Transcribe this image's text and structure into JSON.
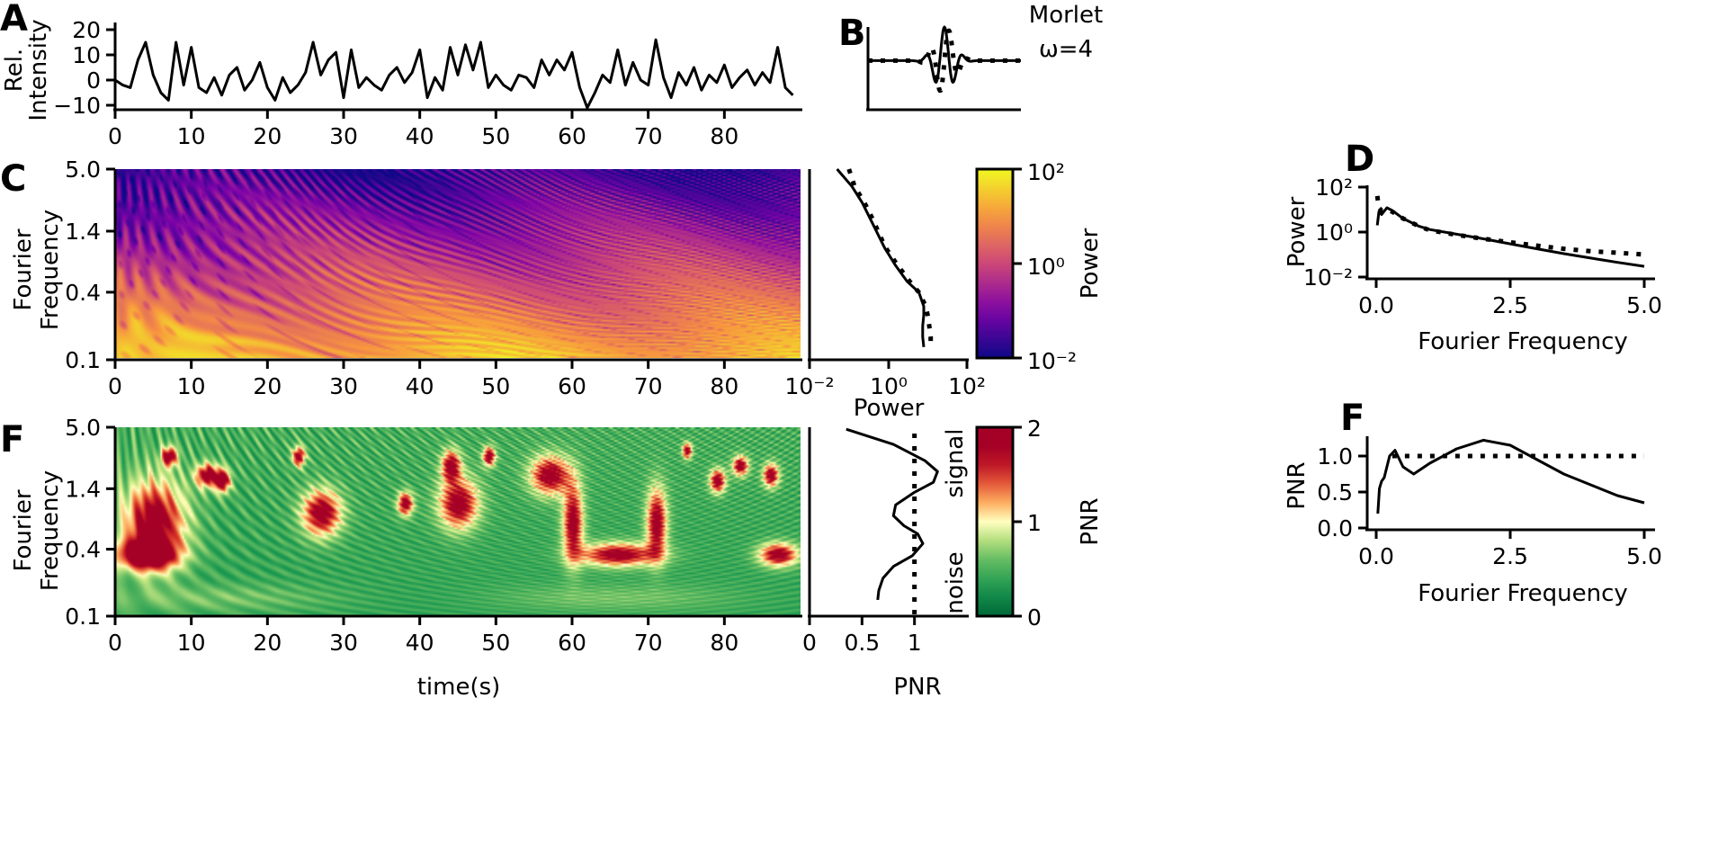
{
  "panel_labels": {
    "A": "A",
    "B": "B",
    "C": "C",
    "D": "D",
    "F1": "F",
    "F2": "F"
  },
  "chart_data": [
    {
      "id": "A",
      "type": "line",
      "ylabel": "Rel.\nIntensity",
      "xlabel": "",
      "xlim": [
        0,
        90
      ],
      "ylim": [
        -12,
        20
      ],
      "xticks": [
        "0",
        "10",
        "20",
        "30",
        "40",
        "50",
        "60",
        "70",
        "80"
      ],
      "yticks": [
        "20",
        "10",
        "0",
        "−10"
      ],
      "x_step": 1,
      "values": [
        0,
        -2,
        -3,
        8,
        15,
        2,
        -5,
        -8,
        15,
        -2,
        13,
        -3,
        -5,
        1,
        -6,
        2,
        5,
        -4,
        0,
        7,
        -3,
        -8,
        1,
        -5,
        -2,
        3,
        15,
        2,
        8,
        11,
        -7,
        12,
        -3,
        1,
        -2,
        -4,
        2,
        5,
        -1,
        3,
        12,
        -7,
        1,
        -4,
        13,
        2,
        14,
        4,
        15,
        -3,
        2,
        -2,
        -4,
        2,
        1,
        -3,
        8,
        2,
        8,
        4,
        11,
        -3,
        -11,
        -5,
        2,
        -1,
        12,
        -2,
        7,
        0,
        -2,
        16,
        1,
        -7,
        3,
        -2,
        5,
        -4,
        2,
        -1,
        6,
        -3,
        1,
        4,
        -2,
        3,
        -1,
        13,
        -3,
        -6
      ]
    },
    {
      "id": "B",
      "type": "line",
      "title": "Morlet\nω=4",
      "omega": 4,
      "series": [
        {
          "style": "solid",
          "part": "real"
        },
        {
          "style": "dotted",
          "part": "imaginary"
        }
      ]
    },
    {
      "id": "C-heatmap",
      "type": "heatmap",
      "ylabel": "Fourier\nFrequency",
      "xlim": [
        0,
        90
      ],
      "ylim": [
        0.1,
        5.0
      ],
      "yscale": "log",
      "xticks": [
        "0",
        "10",
        "20",
        "30",
        "40",
        "50",
        "60",
        "70",
        "80"
      ],
      "yticks": [
        "5.0",
        "1.4",
        "0.4",
        "0.1"
      ],
      "colormap": "plasma"
    },
    {
      "id": "C-global",
      "type": "line",
      "xlabel": "Power",
      "xscale": "log",
      "yscale": "log",
      "xlim": [
        0.01,
        100
      ],
      "ylim": [
        0.1,
        5.0
      ],
      "xticks": [
        "10⁻²",
        "10⁰",
        "10²"
      ],
      "freq": [
        5,
        3.5,
        2.5,
        1.8,
        1.4,
        1,
        0.7,
        0.5,
        0.4,
        0.3,
        0.25,
        0.2,
        0.16,
        0.13
      ],
      "series": [
        {
          "style": "solid",
          "power": [
            0.05,
            0.12,
            0.22,
            0.35,
            0.5,
            0.8,
            1.5,
            3,
            6,
            8,
            8,
            7.5,
            7.5,
            8
          ]
        },
        {
          "style": "dotted",
          "power": [
            0.1,
            0.14,
            0.25,
            0.4,
            0.55,
            0.85,
            1.7,
            3.5,
            6,
            9,
            10,
            11,
            12,
            12
          ]
        }
      ]
    },
    {
      "id": "C-colorbar",
      "type": "colorbar",
      "label": "Power",
      "colormap": "plasma",
      "scale": "log",
      "range": [
        0.01,
        100
      ],
      "ticks": [
        "10²",
        "10⁰",
        "10⁻²"
      ]
    },
    {
      "id": "D",
      "type": "line",
      "xlabel": "Fourier Frequency",
      "ylabel": "Power",
      "yscale": "log",
      "xlim": [
        0,
        5
      ],
      "ylim": [
        0.01,
        100
      ],
      "xticks": [
        "0.0",
        "2.5",
        "5.0"
      ],
      "yticks": [
        "10²",
        "10⁰",
        "10⁻²"
      ],
      "x": [
        0.02,
        0.05,
        0.1,
        0.2,
        0.3,
        0.5,
        0.8,
        1,
        1.5,
        2,
        2.5,
        3,
        3.5,
        4,
        4.5,
        5
      ],
      "series": [
        {
          "style": "solid",
          "y": [
            2,
            8,
            6,
            12,
            9,
            4,
            1.8,
            1.3,
            0.8,
            0.5,
            0.3,
            0.18,
            0.11,
            0.07,
            0.045,
            0.03
          ]
        },
        {
          "style": "dotted",
          "y": [
            40,
            12,
            9,
            10,
            8,
            4,
            1.8,
            1.2,
            0.75,
            0.5,
            0.35,
            0.25,
            0.18,
            0.14,
            0.12,
            0.1
          ]
        }
      ]
    },
    {
      "id": "F-heatmap",
      "type": "heatmap",
      "ylabel": "Fourier\nFrequency",
      "xlabel": "time(s)",
      "xlim": [
        0,
        90
      ],
      "ylim": [
        0.1,
        5.0
      ],
      "yscale": "log",
      "xticks": [
        "0",
        "10",
        "20",
        "30",
        "40",
        "50",
        "60",
        "70",
        "80"
      ],
      "yticks": [
        "5.0",
        "1.4",
        "0.4",
        "0.1"
      ],
      "colormap": "RdYlGn_r"
    },
    {
      "id": "F-global",
      "type": "line",
      "xlabel": "PNR",
      "yscale": "log",
      "xlim": [
        0,
        1.5
      ],
      "ylim": [
        0.1,
        5.0
      ],
      "xticks": [
        "0",
        "0.5",
        "1"
      ],
      "reference_line": 1,
      "freq": [
        4.8,
        3.5,
        2.5,
        2,
        1.6,
        1.3,
        1,
        0.8,
        0.65,
        0.55,
        0.45,
        0.35,
        0.28,
        0.22,
        0.17,
        0.14
      ],
      "pnr": [
        0.35,
        0.8,
        1.1,
        1.22,
        1.18,
        1.0,
        0.82,
        0.8,
        0.9,
        1.03,
        1.08,
        0.98,
        0.8,
        0.7,
        0.66,
        0.65
      ]
    },
    {
      "id": "F-colorbar",
      "type": "colorbar",
      "label": "PNR",
      "colormap": "RdYlGn_r",
      "range": [
        0,
        2
      ],
      "ticks": [
        "2",
        "1",
        "0"
      ],
      "annotations": [
        "signal",
        "noise"
      ]
    },
    {
      "id": "F-right",
      "type": "line",
      "xlabel": "Fourier Frequency",
      "ylabel": "PNR",
      "xlim": [
        0,
        5
      ],
      "ylim": [
        0,
        1.25
      ],
      "xticks": [
        "0.0",
        "2.5",
        "5.0"
      ],
      "yticks": [
        "1.0",
        "0.5",
        "0.0"
      ],
      "x": [
        0.03,
        0.06,
        0.1,
        0.15,
        0.25,
        0.35,
        0.5,
        0.7,
        1,
        1.5,
        2,
        2.5,
        3,
        3.5,
        4,
        4.5,
        5
      ],
      "y": [
        0.2,
        0.55,
        0.65,
        0.7,
        1.0,
        1.08,
        0.85,
        0.75,
        0.9,
        1.1,
        1.22,
        1.15,
        0.95,
        0.75,
        0.6,
        0.45,
        0.35
      ],
      "reference_line": {
        "y": 1.0,
        "x_from": 0.3,
        "x_to": 5
      }
    }
  ]
}
